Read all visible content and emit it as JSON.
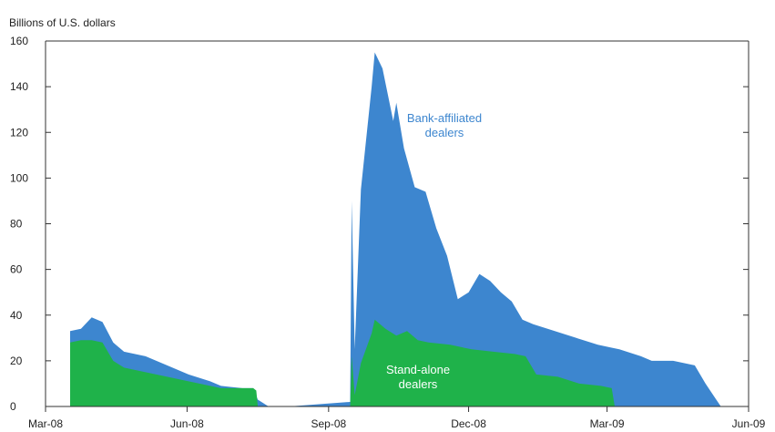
{
  "chart_data": {
    "type": "area",
    "stacked": true,
    "unit_label": "Billions of U.S. dollars",
    "ylim": [
      0,
      160
    ],
    "y_ticks": [
      "0",
      "20",
      "40",
      "60",
      "80",
      "100",
      "120",
      "140",
      "160"
    ],
    "x_tick_labels": [
      "Mar-08",
      "Jun-08",
      "Sep-08",
      "Dec-08",
      "Mar-09",
      "Jun-09"
    ],
    "grid": false,
    "series": [
      {
        "name": "Stand-alone dealers",
        "label_lines": [
          "Stand-alone",
          "dealers"
        ],
        "color": "#1fb24a",
        "points": [
          [
            "2008-03-17",
            0
          ],
          [
            "2008-03-17",
            28
          ],
          [
            "2008-03-24",
            29
          ],
          [
            "2008-03-31",
            29
          ],
          [
            "2008-04-07",
            28
          ],
          [
            "2008-04-14",
            20
          ],
          [
            "2008-04-21",
            17
          ],
          [
            "2008-05-05",
            15
          ],
          [
            "2008-05-19",
            13
          ],
          [
            "2008-06-02",
            11
          ],
          [
            "2008-06-16",
            9
          ],
          [
            "2008-06-23",
            8
          ],
          [
            "2008-07-07",
            8
          ],
          [
            "2008-07-14",
            8
          ],
          [
            "2008-07-16",
            7
          ],
          [
            "2008-07-17",
            0
          ],
          [
            "2008-09-15",
            0
          ],
          [
            "2008-09-16",
            22
          ],
          [
            "2008-09-18",
            5
          ],
          [
            "2008-09-22",
            19
          ],
          [
            "2008-09-29",
            32
          ],
          [
            "2008-10-01",
            38
          ],
          [
            "2008-10-08",
            34
          ],
          [
            "2008-10-15",
            31
          ],
          [
            "2008-10-22",
            33
          ],
          [
            "2008-10-29",
            29
          ],
          [
            "2008-11-05",
            28
          ],
          [
            "2008-11-19",
            27
          ],
          [
            "2008-12-03",
            25
          ],
          [
            "2008-12-17",
            24
          ],
          [
            "2008-12-31",
            23
          ],
          [
            "2009-01-07",
            22
          ],
          [
            "2009-01-14",
            14
          ],
          [
            "2009-01-28",
            13
          ],
          [
            "2009-02-11",
            10
          ],
          [
            "2009-02-25",
            9
          ],
          [
            "2009-03-04",
            8
          ],
          [
            "2009-03-06",
            0
          ],
          [
            "2009-06-01",
            0
          ]
        ]
      },
      {
        "name": "Bank-affiliated dealers",
        "label_lines": [
          "Bank-affiliated",
          "dealers"
        ],
        "color": "#3d86cf",
        "points": [
          [
            "2008-03-17",
            0
          ],
          [
            "2008-03-17",
            33
          ],
          [
            "2008-03-24",
            34
          ],
          [
            "2008-03-31",
            39
          ],
          [
            "2008-04-07",
            37
          ],
          [
            "2008-04-14",
            28
          ],
          [
            "2008-04-21",
            24
          ],
          [
            "2008-05-05",
            22
          ],
          [
            "2008-05-19",
            18
          ],
          [
            "2008-06-02",
            14
          ],
          [
            "2008-06-16",
            11
          ],
          [
            "2008-06-23",
            9
          ],
          [
            "2008-07-07",
            8
          ],
          [
            "2008-07-14",
            8
          ],
          [
            "2008-07-17",
            3
          ],
          [
            "2008-07-24",
            0
          ],
          [
            "2008-08-06",
            0
          ],
          [
            "2008-09-15",
            2
          ],
          [
            "2008-09-16",
            90
          ],
          [
            "2008-09-18",
            25
          ],
          [
            "2008-09-22",
            95
          ],
          [
            "2008-09-29",
            140
          ],
          [
            "2008-10-01",
            155
          ],
          [
            "2008-10-06",
            148
          ],
          [
            "2008-10-13",
            125
          ],
          [
            "2008-10-15",
            133
          ],
          [
            "2008-10-20",
            113
          ],
          [
            "2008-10-27",
            96
          ],
          [
            "2008-11-03",
            94
          ],
          [
            "2008-11-10",
            78
          ],
          [
            "2008-11-17",
            66
          ],
          [
            "2008-11-24",
            47
          ],
          [
            "2008-12-01",
            50
          ],
          [
            "2008-12-08",
            58
          ],
          [
            "2008-12-15",
            55
          ],
          [
            "2008-12-22",
            50
          ],
          [
            "2008-12-29",
            46
          ],
          [
            "2009-01-05",
            38
          ],
          [
            "2009-01-12",
            36
          ],
          [
            "2009-01-26",
            33
          ],
          [
            "2009-02-09",
            30
          ],
          [
            "2009-02-23",
            27
          ],
          [
            "2009-03-09",
            25
          ],
          [
            "2009-03-23",
            22
          ],
          [
            "2009-03-30",
            20
          ],
          [
            "2009-04-13",
            20
          ],
          [
            "2009-04-27",
            18
          ],
          [
            "2009-05-04",
            10
          ],
          [
            "2009-05-11",
            3
          ],
          [
            "2009-05-14",
            0
          ],
          [
            "2009-06-01",
            0
          ]
        ]
      }
    ]
  }
}
